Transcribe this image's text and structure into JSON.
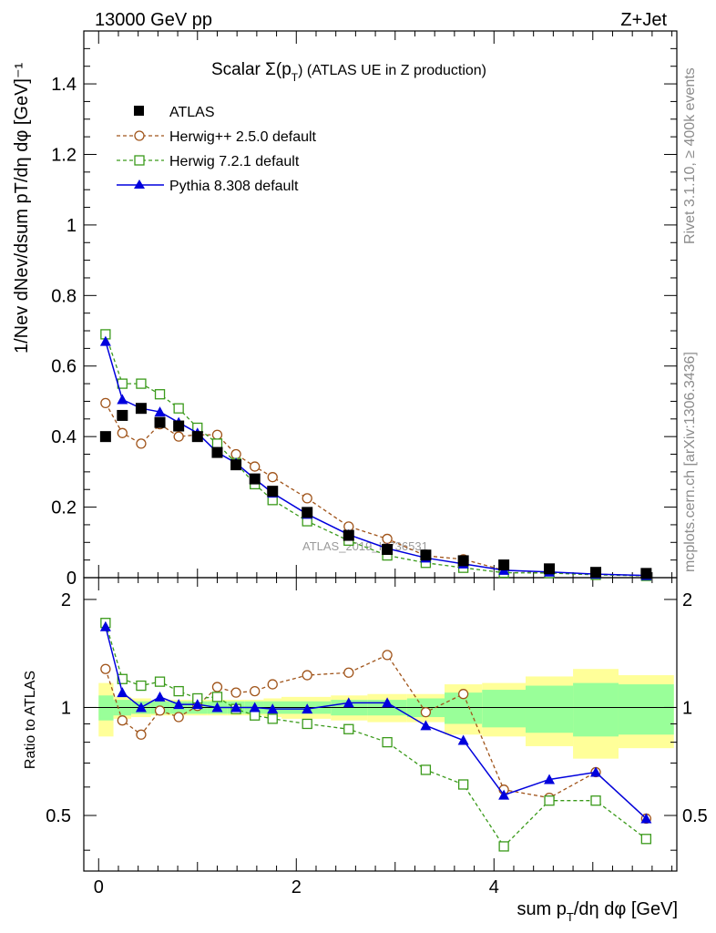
{
  "header": {
    "energy": "13000 GeV pp",
    "process": "Z+Jet",
    "rivet": "Rivet 3.1.10, ≥ 400k events",
    "mcplots": "mcplots.cern.ch [arXiv:1306.3436]",
    "watermark": "ATLAS_2019_I1736531"
  },
  "colors": {
    "atlas": "#000000",
    "herwig25": "#a0541a",
    "herwig72": "#3a9a1a",
    "pythia": "#0000dd",
    "band_inner": "#99ff99",
    "band_outer": "#ffff99"
  },
  "chart_data": [
    {
      "type": "line",
      "title": "Scalar Σ(pT) (ATLAS UE in Z production)",
      "title_main": "Scalar Σ(p",
      "title_sub": "T",
      "title_rest": ") (ATLAS UE in Z production)",
      "ylabel": "1/Nev dNev/dsum pT/dη dφ [GeV]⁻¹",
      "xlim": [
        -0.15,
        5.85
      ],
      "ylim": [
        0,
        1.55
      ],
      "yticks": [
        0,
        0.2,
        0.4,
        0.6,
        0.8,
        1,
        1.2,
        1.4
      ],
      "ytick_labels": [
        "0",
        "0.2",
        "0.4",
        "0.6",
        "0.8",
        "1",
        "1.2",
        "1.4"
      ],
      "x": [
        0.07,
        0.24,
        0.43,
        0.62,
        0.81,
        1.0,
        1.2,
        1.39,
        1.58,
        1.76,
        2.11,
        2.53,
        2.92,
        3.31,
        3.69,
        4.1,
        4.56,
        5.03,
        5.54
      ],
      "series": [
        {
          "name": "ATLAS",
          "values": [
            0.4,
            0.46,
            0.48,
            0.44,
            0.43,
            0.4,
            0.355,
            0.32,
            0.28,
            0.245,
            0.185,
            0.12,
            0.08,
            0.064,
            0.048,
            0.036,
            0.025,
            0.015,
            0.012
          ]
        },
        {
          "name": "Herwig++ 2.5.0 default",
          "values": [
            0.495,
            0.41,
            0.38,
            0.435,
            0.4,
            0.405,
            0.405,
            0.35,
            0.315,
            0.285,
            0.225,
            0.145,
            0.11,
            0.062,
            0.052,
            0.021,
            0.014,
            0.01,
            0.006
          ]
        },
        {
          "name": "Herwig 7.2.1 default",
          "values": [
            0.69,
            0.55,
            0.55,
            0.52,
            0.48,
            0.425,
            0.38,
            0.325,
            0.265,
            0.22,
            0.16,
            0.105,
            0.063,
            0.042,
            0.028,
            0.014,
            0.013,
            0.008,
            0.005
          ]
        },
        {
          "name": "Pythia 8.308 default",
          "values": [
            0.67,
            0.505,
            0.48,
            0.47,
            0.44,
            0.41,
            0.355,
            0.325,
            0.28,
            0.24,
            0.18,
            0.122,
            0.083,
            0.056,
            0.039,
            0.021,
            0.016,
            0.01,
            0.006
          ]
        }
      ]
    },
    {
      "type": "line",
      "ylabel": "Ratio to ATLAS",
      "xlabel": "sum pT/dη dφ [GeV]",
      "xlabel_a": "sum p",
      "xlabel_sub": "T",
      "xlabel_b": "/dη dφ [GeV]",
      "xlim": [
        -0.15,
        5.85
      ],
      "ylim": [
        0.35,
        2.3
      ],
      "yticks": [
        0.5,
        1,
        2
      ],
      "ytick_labels": [
        "0.5",
        "1",
        "2"
      ],
      "xticks": [
        0,
        2,
        4
      ],
      "xtick_labels": [
        "0",
        "2",
        "4"
      ],
      "x": [
        0.07,
        0.24,
        0.43,
        0.62,
        0.81,
        1.0,
        1.2,
        1.39,
        1.58,
        1.76,
        2.11,
        2.53,
        2.92,
        3.31,
        3.69,
        4.1,
        4.56,
        5.03,
        5.54
      ],
      "bin_edges": [
        0,
        0.15,
        0.33,
        0.53,
        0.72,
        0.9,
        1.1,
        1.3,
        1.48,
        1.67,
        1.85,
        2.35,
        2.72,
        3.12,
        3.5,
        3.88,
        4.32,
        4.8,
        5.26,
        5.82
      ],
      "band_inner": [
        0.08,
        0.05,
        0.04,
        0.04,
        0.04,
        0.04,
        0.04,
        0.04,
        0.04,
        0.04,
        0.04,
        0.05,
        0.05,
        0.06,
        0.1,
        0.12,
        0.15,
        0.17,
        0.16
      ],
      "band_outer": [
        0.17,
        0.07,
        0.06,
        0.05,
        0.05,
        0.05,
        0.05,
        0.05,
        0.05,
        0.06,
        0.07,
        0.08,
        0.09,
        0.09,
        0.16,
        0.17,
        0.22,
        0.28,
        0.23
      ],
      "series": [
        {
          "name": "Herwig++ 2.5.0 default",
          "values": [
            1.28,
            0.92,
            0.84,
            0.98,
            0.94,
            1.01,
            1.14,
            1.1,
            1.11,
            1.16,
            1.23,
            1.25,
            1.4,
            0.97,
            1.09,
            0.59,
            0.56,
            0.66,
            0.49
          ]
        },
        {
          "name": "Herwig 7.2.1 default",
          "values": [
            1.72,
            1.2,
            1.15,
            1.18,
            1.11,
            1.06,
            1.07,
            0.99,
            0.95,
            0.93,
            0.9,
            0.87,
            0.8,
            0.67,
            0.61,
            0.41,
            0.55,
            0.55,
            0.43
          ]
        },
        {
          "name": "Pythia 8.308 default",
          "values": [
            1.68,
            1.1,
            1.0,
            1.07,
            1.02,
            1.02,
            1.0,
            1.0,
            1.0,
            0.99,
            0.99,
            1.03,
            1.03,
            0.89,
            0.81,
            0.57,
            0.63,
            0.66,
            0.49
          ]
        }
      ]
    }
  ]
}
